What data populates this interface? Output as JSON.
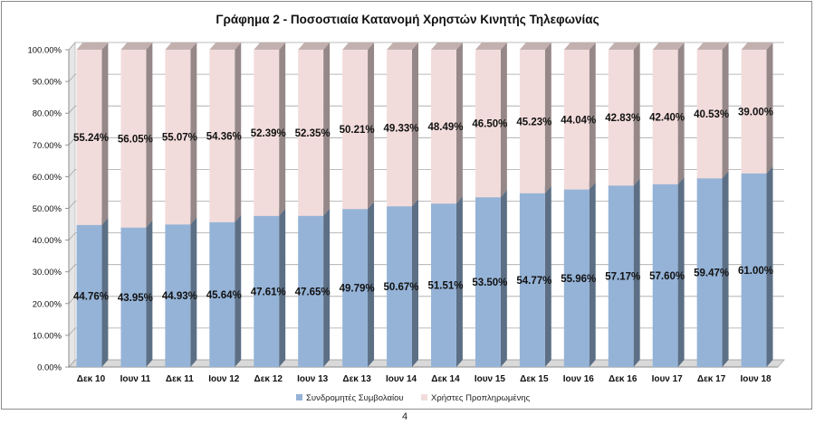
{
  "page_number": "4",
  "chart_data": {
    "type": "bar",
    "stacked": true,
    "style": "3d-percent-stacked-column",
    "title": "Γράφημα 2 - Ποσοστιαία Κατανομή Χρηστών Κινητής Τηλεφωνίας",
    "xlabel": "",
    "ylabel": "",
    "ylim": [
      0,
      1
    ],
    "yticks": [
      "0.00%",
      "10.00%",
      "20.00%",
      "30.00%",
      "40.00%",
      "50.00%",
      "60.00%",
      "70.00%",
      "80.00%",
      "90.00%",
      "100.00%"
    ],
    "grid": true,
    "legend_position": "bottom",
    "categories": [
      "Δεκ 10",
      "Ιουν 11",
      "Δεκ 11",
      "Ιουν 12",
      "Δεκ 12",
      "Ιουν 13",
      "Δεκ 13",
      "Ιουν 14",
      "Δεκ 14",
      "Ιουν 15",
      "Δεκ 15",
      "Ιουν 16",
      "Δεκ 16",
      "Ιουν 17",
      "Δεκ 17",
      "Ιουν 18"
    ],
    "series": [
      {
        "name": "Συνδρομητές Συμβολαίου",
        "color": "#95b3d7",
        "values": [
          0.4476,
          0.4395,
          0.4493,
          0.4564,
          0.4761,
          0.4765,
          0.4979,
          0.5067,
          0.5151,
          0.535,
          0.5477,
          0.5596,
          0.5717,
          0.576,
          0.5947,
          0.61
        ],
        "labels": [
          "44.76%",
          "43.95%",
          "44.93%",
          "45.64%",
          "47.61%",
          "47.65%",
          "49.79%",
          "50.67%",
          "51.51%",
          "53.50%",
          "54.77%",
          "55.96%",
          "57.17%",
          "57.60%",
          "59.47%",
          "61.00%"
        ]
      },
      {
        "name": "Χρήστες Προπληρωμένης",
        "color": "#f2dcdb",
        "values": [
          0.5524,
          0.5605,
          0.5507,
          0.5436,
          0.5239,
          0.5235,
          0.5021,
          0.4933,
          0.4849,
          0.465,
          0.4523,
          0.4404,
          0.4283,
          0.424,
          0.4053,
          0.39
        ],
        "labels": [
          "55.24%",
          "56.05%",
          "55.07%",
          "54.36%",
          "52.39%",
          "52.35%",
          "50.21%",
          "49.33%",
          "48.49%",
          "46.50%",
          "45.23%",
          "44.04%",
          "42.83%",
          "42.40%",
          "40.53%",
          "39.00%"
        ]
      }
    ]
  }
}
